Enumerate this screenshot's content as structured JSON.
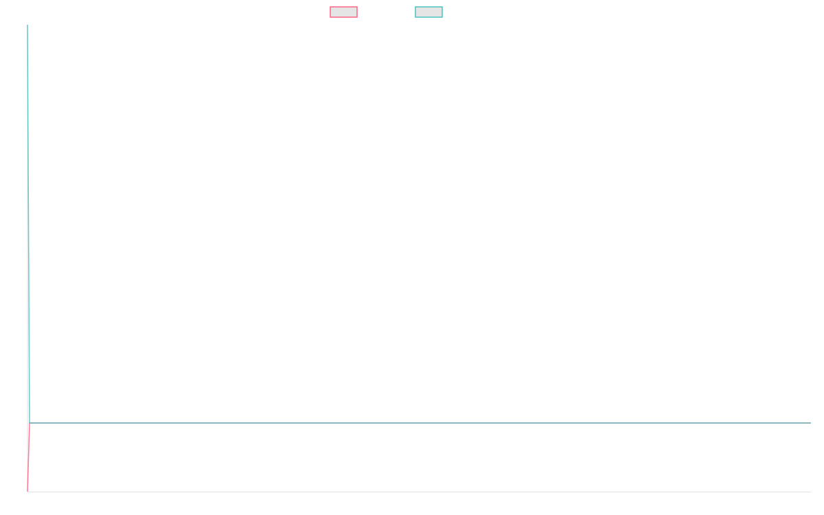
{
  "chart_data": {
    "type": "line",
    "title": "",
    "xlabel": "",
    "ylabel": "",
    "xlim": [
      0,
      380
    ],
    "ylim": [
      -1,
      5.8
    ],
    "grid": false,
    "legend": "top",
    "series": [
      {
        "color": "#4bc0c0",
        "points": [
          [
            0,
            -1
          ],
          [
            1,
            0
          ],
          [
            380,
            0
          ]
        ],
        "legend_fill": "#e5e5e5"
      },
      {
        "color": "#4bc0c0",
        "points": [
          [
            0,
            5.8
          ],
          [
            1,
            0
          ],
          [
            380,
            0
          ]
        ],
        "legend_fill": "#e5e5e5"
      }
    ],
    "axis_color": "#e0e0e0"
  }
}
